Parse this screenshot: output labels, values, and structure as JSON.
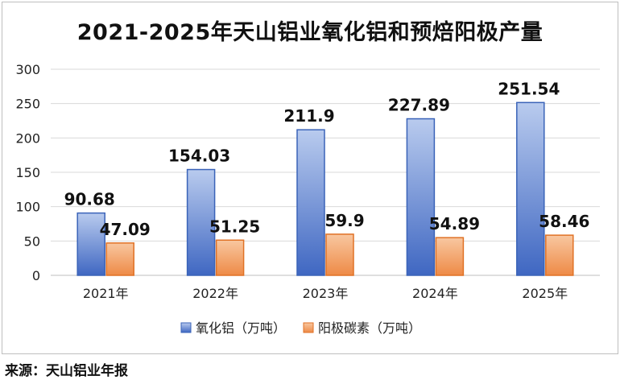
{
  "title": "2021-2025年天山铝业氧化铝和预焙阳极产量",
  "source": "来源：天山铝业年报",
  "chart_data": {
    "type": "bar",
    "title": "2021-2025年天山铝业氧化铝和预焙阳极产量",
    "categories": [
      "2021年",
      "2022年",
      "2023年",
      "2024年",
      "2025年"
    ],
    "series": [
      {
        "name": "氧化铝（万吨）",
        "values": [
          90.68,
          154.03,
          211.9,
          227.89,
          251.54
        ],
        "color": "#4a72c6",
        "labels": [
          "90.68",
          "154.03",
          "211.9",
          "227.89",
          "251.54"
        ]
      },
      {
        "name": "阳极碳素（万吨）",
        "values": [
          47.09,
          51.25,
          59.9,
          54.89,
          58.46
        ],
        "color": "#ed7d31",
        "labels": [
          "47.09",
          "51.25",
          "59.9",
          "54.89",
          "58.46"
        ]
      }
    ],
    "yticks": [
      "0",
      "50",
      "100",
      "150",
      "200",
      "250",
      "300"
    ],
    "ylim": [
      0,
      300
    ],
    "grid": true,
    "legend": "bottom"
  }
}
